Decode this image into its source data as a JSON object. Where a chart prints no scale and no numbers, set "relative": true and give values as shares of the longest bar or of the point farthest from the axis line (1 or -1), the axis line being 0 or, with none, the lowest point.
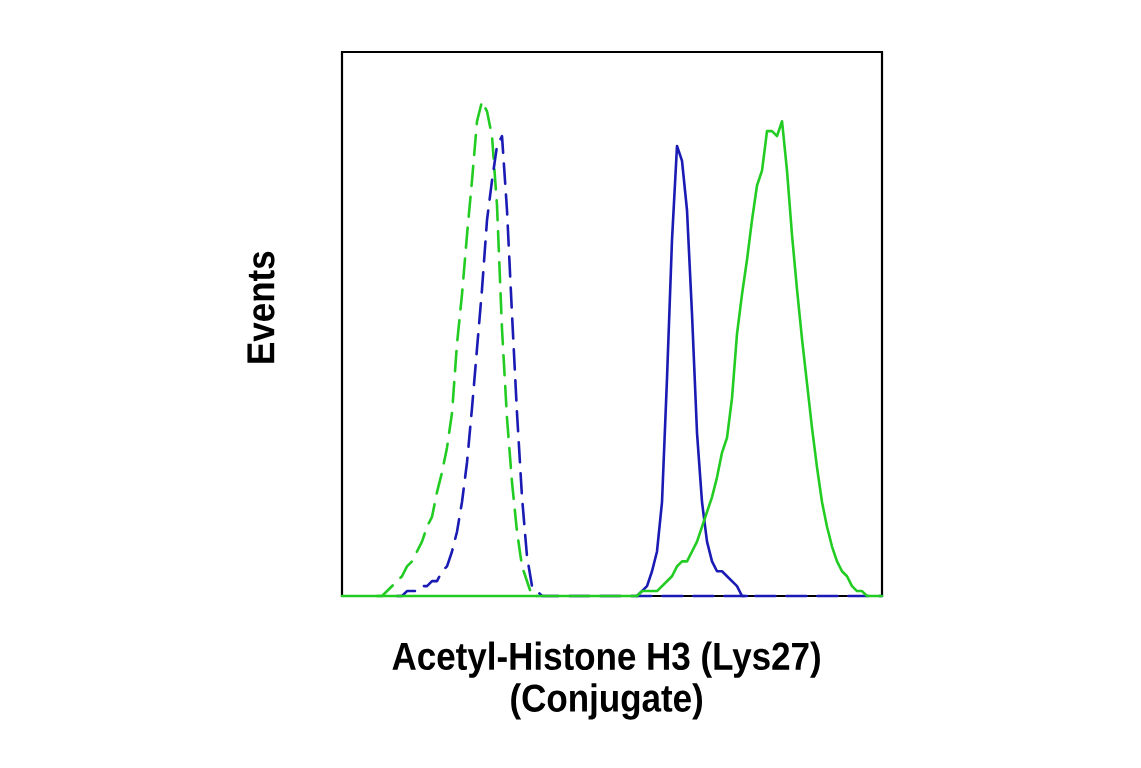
{
  "chart_data": {
    "type": "line",
    "relative": true,
    "xlabel": "Acetyl-Histone H3 (Lys27) (Conjugate)",
    "ylabel": "Events",
    "categories": [
      null,
      null,
      null,
      null,
      null,
      null,
      null,
      null,
      null,
      null,
      null,
      null,
      null,
      null,
      null,
      null,
      null,
      null,
      null,
      null,
      null,
      null,
      null,
      null,
      null,
      null,
      null,
      null,
      null,
      null,
      null,
      null,
      null,
      null,
      null,
      null,
      null,
      null,
      null,
      null,
      null,
      null,
      null,
      null,
      null,
      null,
      null,
      null,
      null,
      null,
      null,
      null,
      null,
      null,
      null,
      null,
      null,
      null,
      null,
      null,
      null,
      null,
      null,
      null,
      null,
      null,
      null,
      null,
      null,
      null,
      null,
      null,
      null,
      null,
      null,
      null,
      null,
      null,
      null,
      null,
      null,
      null,
      null,
      null,
      null,
      null,
      null,
      null,
      null,
      null,
      null,
      null,
      null,
      null,
      null,
      null,
      null,
      null,
      null,
      null,
      null,
      null,
      null,
      null,
      null,
      null,
      null,
      null,
      null
    ],
    "series": [
      {
        "color": "#22cc22",
        "line_style": "dashed",
        "values": [
          null,
          null,
          null,
          null,
          null,
          null,
          null,
          0,
          0,
          0.01,
          0.02,
          0.03,
          0.04,
          0.06,
          0.07,
          0.09,
          0.11,
          0.14,
          0.16,
          0.21,
          0.25,
          0.3,
          0.37,
          0.51,
          0.61,
          0.73,
          0.84,
          0.96,
          1.0,
          0.98,
          0.93,
          0.79,
          0.54,
          0.36,
          0.23,
          0.13,
          0.06,
          0.03,
          0,
          0,
          null,
          null,
          null,
          null,
          null,
          null,
          null,
          null,
          null,
          null,
          null,
          null,
          null,
          null,
          null,
          null,
          null,
          null,
          null,
          null,
          null,
          null,
          null,
          null,
          null,
          null,
          null,
          null,
          null,
          null,
          null,
          null,
          null,
          null,
          null,
          null,
          null,
          null,
          null,
          null,
          null,
          null,
          null,
          null,
          null,
          null,
          null,
          null,
          null,
          null,
          null,
          null,
          null,
          null,
          null,
          null,
          null,
          null,
          null,
          null,
          null,
          null,
          null,
          null,
          null,
          null,
          null,
          null,
          null
        ]
      },
      {
        "color": "#1a1ab4",
        "line_style": "dashed",
        "values": [
          null,
          null,
          null,
          null,
          null,
          null,
          null,
          null,
          null,
          null,
          null,
          0,
          0,
          0.01,
          0.01,
          0.01,
          0.02,
          0.02,
          0.03,
          0.03,
          0.05,
          0.06,
          0.09,
          0.13,
          0.19,
          0.27,
          0.38,
          0.5,
          0.62,
          0.76,
          0.84,
          0.91,
          0.93,
          0.78,
          0.57,
          0.37,
          0.2,
          0.08,
          0.02,
          0.01,
          0,
          0,
          0,
          0,
          0,
          0,
          0,
          0,
          0,
          0,
          0,
          0,
          0,
          0,
          0,
          0,
          0,
          0,
          0,
          0,
          0,
          0,
          0,
          0,
          0,
          0,
          0,
          0,
          0,
          0,
          0,
          0,
          0,
          0,
          0,
          0,
          0,
          0,
          0,
          0,
          0,
          0,
          0,
          0,
          0,
          0,
          0,
          0,
          0,
          0,
          0,
          0,
          0,
          0,
          0,
          0,
          0,
          0,
          0,
          0,
          0,
          0,
          0,
          0,
          0,
          0,
          0,
          0,
          0
        ]
      },
      {
        "color": "#1a1ab4",
        "line_style": "solid",
        "values": [
          null,
          null,
          null,
          null,
          null,
          null,
          null,
          null,
          null,
          null,
          null,
          null,
          null,
          null,
          null,
          null,
          null,
          null,
          null,
          null,
          null,
          null,
          null,
          null,
          null,
          null,
          null,
          null,
          null,
          null,
          null,
          null,
          null,
          null,
          null,
          null,
          null,
          null,
          null,
          null,
          null,
          null,
          null,
          null,
          null,
          null,
          null,
          null,
          null,
          null,
          null,
          null,
          null,
          null,
          null,
          null,
          null,
          null,
          null,
          0,
          0.01,
          0.02,
          0.05,
          0.09,
          0.19,
          0.44,
          0.72,
          0.91,
          0.88,
          0.78,
          0.57,
          0.33,
          0.19,
          0.11,
          0.07,
          0.05,
          0.05,
          0.04,
          0.03,
          0.02,
          0,
          0,
          null,
          null,
          null,
          null,
          null,
          null,
          null,
          null,
          null,
          null,
          null,
          null,
          null,
          null,
          null,
          null,
          null,
          null,
          null,
          null,
          null,
          null,
          null,
          null,
          null,
          null,
          null
        ]
      },
      {
        "color": "#22cc22",
        "line_style": "solid",
        "values": [
          0,
          0,
          0,
          0,
          0,
          0,
          0,
          0,
          0,
          0,
          0,
          0,
          0,
          0,
          0,
          0,
          0,
          0,
          0,
          0,
          0,
          0,
          0,
          0,
          0,
          0,
          0,
          0,
          0,
          0,
          0,
          0,
          0,
          0,
          0,
          0,
          0,
          0,
          0,
          0,
          0,
          0,
          0,
          0,
          0,
          0,
          0,
          0,
          0,
          0,
          0,
          0,
          0,
          0,
          0,
          0,
          0,
          0,
          0,
          0,
          0.01,
          0.01,
          0.01,
          0.01,
          0.02,
          0.03,
          0.04,
          0.06,
          0.07,
          0.07,
          0.09,
          0.11,
          0.14,
          0.17,
          0.2,
          0.24,
          0.29,
          0.32,
          0.4,
          0.53,
          0.61,
          0.68,
          0.76,
          0.83,
          0.86,
          0.94,
          0.94,
          0.93,
          0.96,
          0.86,
          0.73,
          0.62,
          0.52,
          0.43,
          0.34,
          0.26,
          0.19,
          0.14,
          0.1,
          0.07,
          0.05,
          0.04,
          0.02,
          0.01,
          0.01,
          0,
          0,
          0,
          0
        ]
      }
    ]
  }
}
